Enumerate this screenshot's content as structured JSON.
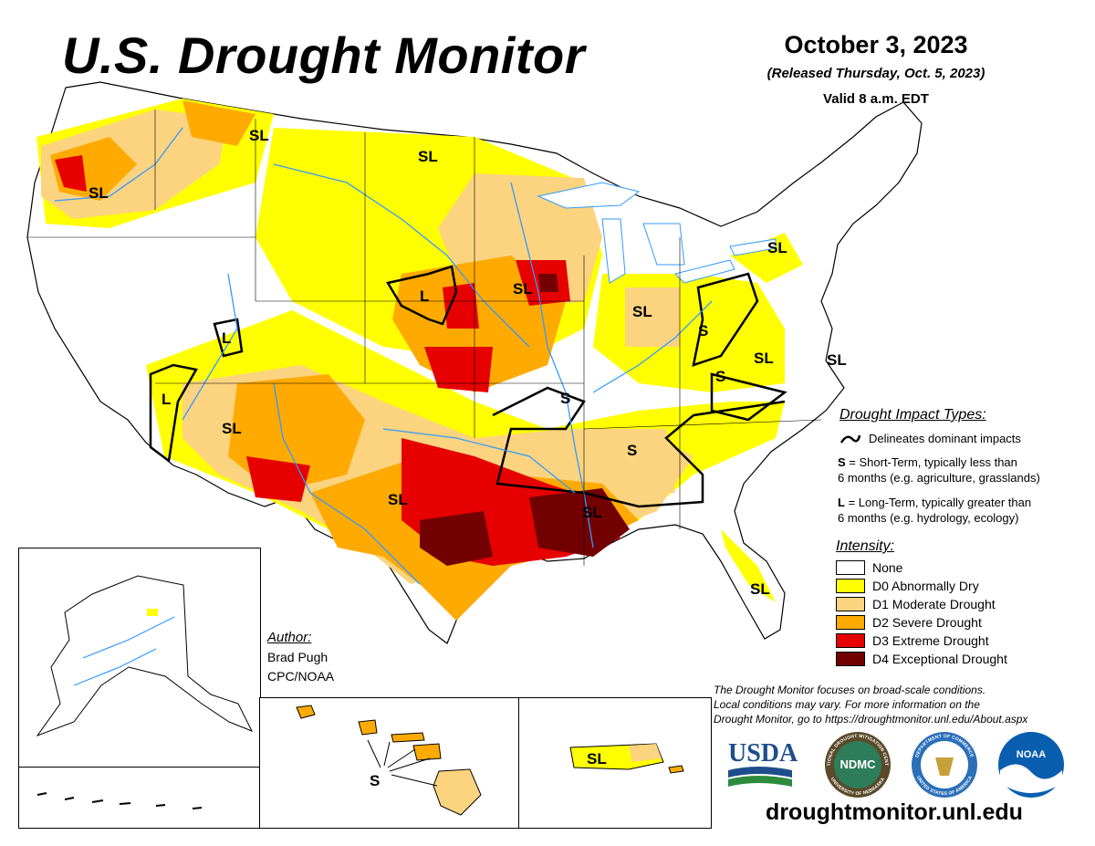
{
  "header": {
    "title": "U.S. Drought Monitor",
    "date": "October 3, 2023",
    "released": "(Released Thursday, Oct. 5, 2023)",
    "valid": "Valid 8 a.m. EDT"
  },
  "impact_labels": {
    "sl_pnw": "SL",
    "sl_mt": "SL",
    "sl_nd": "SL",
    "l_ne": "L",
    "sl_ia": "SL",
    "l_ut": "L",
    "l_az": "L",
    "sl_nm": "SL",
    "sl_tx": "SL",
    "sl_la": "SL",
    "s_mo": "S",
    "s_ga": "S",
    "sl_in": "SL",
    "s_oh": "S",
    "s_wv": "S",
    "sl_va": "SL",
    "sl_de": "SL",
    "sl_ny": "SL",
    "sl_fl": "SL",
    "s_hi": "S",
    "sl_pr": "SL"
  },
  "legend": {
    "impact_title": "Drought Impact Types:",
    "delineates": "Delineates dominant impacts",
    "s_key": "S",
    "s_desc1": " = Short-Term, typically less than",
    "s_desc2": "6 months (e.g. agriculture, grasslands)",
    "l_key": "L",
    "l_desc1": " = Long-Term, typically greater than",
    "l_desc2": "6 months (e.g. hydrology, ecology)",
    "intensity_title": "Intensity:",
    "levels": [
      {
        "label": "None",
        "color": "#ffffff"
      },
      {
        "label": "D0 Abnormally Dry",
        "color": "#ffff00"
      },
      {
        "label": "D1 Moderate Drought",
        "color": "#fcd37f"
      },
      {
        "label": "D2 Severe Drought",
        "color": "#ffaa00"
      },
      {
        "label": "D3 Extreme Drought",
        "color": "#e60000"
      },
      {
        "label": "D4 Exceptional Drought",
        "color": "#730000"
      }
    ]
  },
  "author": {
    "heading": "Author:",
    "name": "Brad Pugh",
    "org": "CPC/NOAA"
  },
  "disclaimer": {
    "line1": "The Drought Monitor focuses on broad-scale conditions.",
    "line2": "Local conditions may vary. For more information on the",
    "line3": "Drought Monitor, go to https://droughtmonitor.unl.edu/About.aspx"
  },
  "logos": {
    "usda": "USDA",
    "ndmc": "NDMC",
    "ndmc_ring_top": "NATIONAL DROUGHT MITIGATION CENTER",
    "ndmc_ring_bottom": "UNIVERSITY OF NEBRASKA",
    "doc_ring_top": "DEPARTMENT OF COMMERCE",
    "doc_ring_bottom": "UNITED STATES OF AMERICA",
    "noaa": "NOAA"
  },
  "url": "droughtmonitor.unl.edu"
}
